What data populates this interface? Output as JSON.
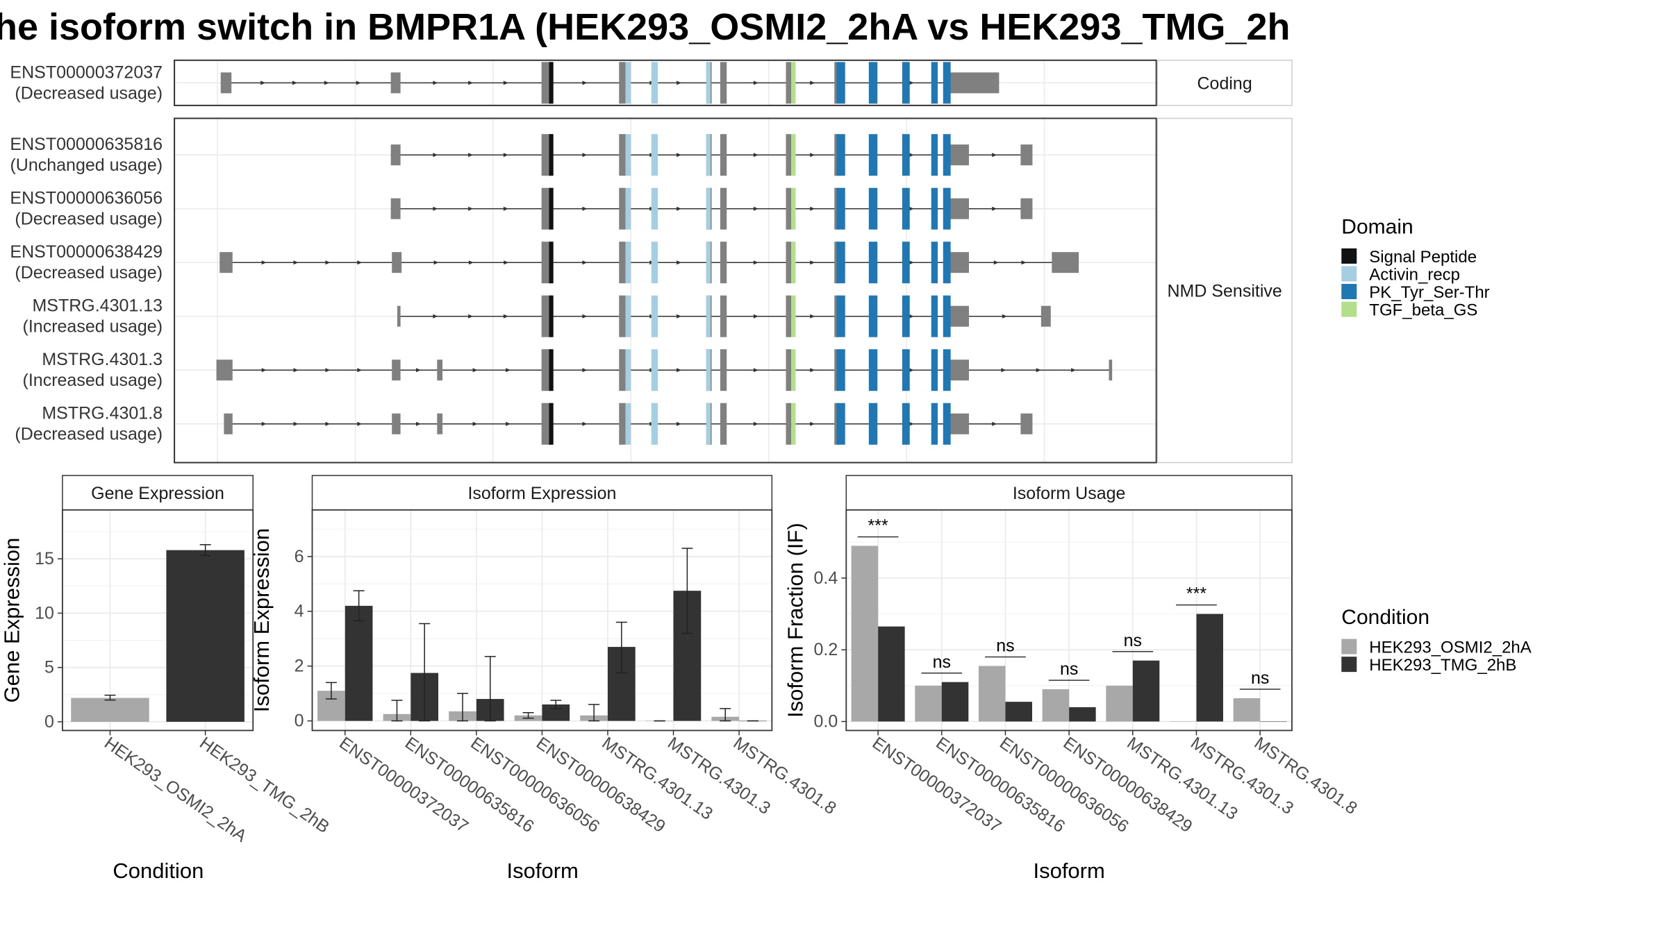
{
  "title": "he isoform switch in BMPR1A (HEK293_OSMI2_2hA vs HEK293_TMG_2h",
  "colors": {
    "exon": "#808080",
    "signal_peptide": "#111111",
    "activin_recp": "#a6cee3",
    "pk_tyr_ser_thr": "#1f78b4",
    "tgf_beta_gs": "#b2df8a",
    "cond_a": "#a8a8a8",
    "cond_b": "#333333",
    "panel_border": "#333333",
    "grid": "#ebebeb"
  },
  "structure": {
    "coding_label": "Coding",
    "nmd_label": "NMD Sensitive",
    "coding_transcripts": [
      {
        "id": "ENST00000372037",
        "usage": "(Decreased usage)",
        "line": [
          205,
          928
        ],
        "exons": [
          [
            205,
            215
          ],
          [
            363,
            372
          ],
          [
            503,
            512
          ],
          [
            575,
            581
          ],
          [
            656,
            661
          ],
          [
            669,
            675
          ],
          [
            730,
            735
          ],
          [
            775,
            779
          ],
          [
            881,
            928
          ]
        ],
        "domains": [
          {
            "d": "signal_peptide",
            "r": [
              510,
              514
            ]
          },
          {
            "d": "activin_recp",
            "r": [
              581,
              586
            ]
          },
          {
            "d": "activin_recp",
            "r": [
              605,
              611
            ]
          },
          {
            "d": "activin_recp",
            "r": [
              656,
              660
            ]
          },
          {
            "d": "tgf_beta_gs",
            "r": [
              735,
              739
            ]
          },
          {
            "d": "pk_tyr_ser_thr",
            "r": [
              777,
              785
            ]
          },
          {
            "d": "pk_tyr_ser_thr",
            "r": [
              807,
              815
            ]
          },
          {
            "d": "pk_tyr_ser_thr",
            "r": [
              838,
              845
            ]
          },
          {
            "d": "pk_tyr_ser_thr",
            "r": [
              865,
              871
            ]
          },
          {
            "d": "pk_tyr_ser_thr",
            "r": [
              876,
              883
            ]
          }
        ]
      }
    ],
    "nmd_transcripts": [
      {
        "id": "ENST00000635816",
        "usage": "(Unchanged usage)",
        "line": [
          363,
          959
        ],
        "exons": [
          [
            363,
            372
          ],
          [
            503,
            512
          ],
          [
            575,
            581
          ],
          [
            656,
            661
          ],
          [
            669,
            675
          ],
          [
            730,
            735
          ],
          [
            775,
            779
          ],
          [
            881,
            900
          ],
          [
            948,
            959
          ]
        ],
        "domains": [
          {
            "d": "signal_peptide",
            "r": [
              510,
              514
            ]
          },
          {
            "d": "activin_recp",
            "r": [
              581,
              586
            ]
          },
          {
            "d": "activin_recp",
            "r": [
              605,
              611
            ]
          },
          {
            "d": "activin_recp",
            "r": [
              656,
              660
            ]
          },
          {
            "d": "tgf_beta_gs",
            "r": [
              735,
              739
            ]
          },
          {
            "d": "pk_tyr_ser_thr",
            "r": [
              777,
              785
            ]
          },
          {
            "d": "pk_tyr_ser_thr",
            "r": [
              807,
              815
            ]
          },
          {
            "d": "pk_tyr_ser_thr",
            "r": [
              838,
              845
            ]
          },
          {
            "d": "pk_tyr_ser_thr",
            "r": [
              865,
              871
            ]
          },
          {
            "d": "pk_tyr_ser_thr",
            "r": [
              876,
              883
            ]
          }
        ]
      },
      {
        "id": "ENST00000636056",
        "usage": "(Decreased usage)",
        "line": [
          363,
          959
        ],
        "exons": [
          [
            363,
            372
          ],
          [
            503,
            512
          ],
          [
            575,
            581
          ],
          [
            656,
            661
          ],
          [
            669,
            675
          ],
          [
            730,
            735
          ],
          [
            775,
            779
          ],
          [
            881,
            900
          ],
          [
            948,
            959
          ]
        ],
        "domains": [
          {
            "d": "signal_peptide",
            "r": [
              510,
              514
            ]
          },
          {
            "d": "activin_recp",
            "r": [
              581,
              586
            ]
          },
          {
            "d": "activin_recp",
            "r": [
              605,
              611
            ]
          },
          {
            "d": "activin_recp",
            "r": [
              656,
              660
            ]
          },
          {
            "d": "tgf_beta_gs",
            "r": [
              735,
              739
            ]
          },
          {
            "d": "pk_tyr_ser_thr",
            "r": [
              777,
              785
            ]
          },
          {
            "d": "pk_tyr_ser_thr",
            "r": [
              807,
              815
            ]
          },
          {
            "d": "pk_tyr_ser_thr",
            "r": [
              838,
              845
            ]
          },
          {
            "d": "pk_tyr_ser_thr",
            "r": [
              865,
              871
            ]
          },
          {
            "d": "pk_tyr_ser_thr",
            "r": [
              876,
              883
            ]
          }
        ]
      },
      {
        "id": "ENST00000638429",
        "usage": "(Decreased usage)",
        "line": [
          204,
          1002
        ],
        "exons": [
          [
            204,
            216
          ],
          [
            364,
            373
          ],
          [
            503,
            512
          ],
          [
            575,
            581
          ],
          [
            656,
            661
          ],
          [
            669,
            675
          ],
          [
            730,
            735
          ],
          [
            775,
            779
          ],
          [
            881,
            900
          ],
          [
            977,
            1002
          ]
        ],
        "domains": [
          {
            "d": "signal_peptide",
            "r": [
              510,
              514
            ]
          },
          {
            "d": "activin_recp",
            "r": [
              581,
              586
            ]
          },
          {
            "d": "activin_recp",
            "r": [
              605,
              611
            ]
          },
          {
            "d": "activin_recp",
            "r": [
              656,
              660
            ]
          },
          {
            "d": "tgf_beta_gs",
            "r": [
              735,
              739
            ]
          },
          {
            "d": "pk_tyr_ser_thr",
            "r": [
              777,
              785
            ]
          },
          {
            "d": "pk_tyr_ser_thr",
            "r": [
              807,
              815
            ]
          },
          {
            "d": "pk_tyr_ser_thr",
            "r": [
              838,
              845
            ]
          },
          {
            "d": "pk_tyr_ser_thr",
            "r": [
              865,
              871
            ]
          },
          {
            "d": "pk_tyr_ser_thr",
            "r": [
              876,
              883
            ]
          }
        ]
      },
      {
        "id": "MSTRG.4301.13",
        "usage": "(Increased usage)",
        "line": [
          369,
          976
        ],
        "exons": [
          [
            369,
            372
          ],
          [
            503,
            512
          ],
          [
            575,
            581
          ],
          [
            656,
            661
          ],
          [
            669,
            675
          ],
          [
            730,
            735
          ],
          [
            775,
            779
          ],
          [
            881,
            900
          ],
          [
            967,
            976
          ]
        ],
        "domains": [
          {
            "d": "signal_peptide",
            "r": [
              510,
              514
            ]
          },
          {
            "d": "activin_recp",
            "r": [
              581,
              586
            ]
          },
          {
            "d": "activin_recp",
            "r": [
              605,
              611
            ]
          },
          {
            "d": "activin_recp",
            "r": [
              656,
              660
            ]
          },
          {
            "d": "tgf_beta_gs",
            "r": [
              735,
              739
            ]
          },
          {
            "d": "pk_tyr_ser_thr",
            "r": [
              777,
              785
            ]
          },
          {
            "d": "pk_tyr_ser_thr",
            "r": [
              807,
              815
            ]
          },
          {
            "d": "pk_tyr_ser_thr",
            "r": [
              838,
              845
            ]
          },
          {
            "d": "pk_tyr_ser_thr",
            "r": [
              865,
              871
            ]
          },
          {
            "d": "pk_tyr_ser_thr",
            "r": [
              876,
              883
            ]
          }
        ]
      },
      {
        "id": "MSTRG.4301.3",
        "usage": "(Increased usage)",
        "line": [
          201,
          1033
        ],
        "exons": [
          [
            201,
            216
          ],
          [
            364,
            372
          ],
          [
            406,
            411
          ],
          [
            503,
            512
          ],
          [
            575,
            581
          ],
          [
            656,
            661
          ],
          [
            669,
            675
          ],
          [
            730,
            735
          ],
          [
            775,
            779
          ],
          [
            881,
            900
          ],
          [
            1030,
            1033
          ]
        ],
        "domains": [
          {
            "d": "signal_peptide",
            "r": [
              510,
              514
            ]
          },
          {
            "d": "activin_recp",
            "r": [
              581,
              586
            ]
          },
          {
            "d": "activin_recp",
            "r": [
              605,
              611
            ]
          },
          {
            "d": "activin_recp",
            "r": [
              656,
              660
            ]
          },
          {
            "d": "tgf_beta_gs",
            "r": [
              735,
              739
            ]
          },
          {
            "d": "pk_tyr_ser_thr",
            "r": [
              777,
              785
            ]
          },
          {
            "d": "pk_tyr_ser_thr",
            "r": [
              807,
              815
            ]
          },
          {
            "d": "pk_tyr_ser_thr",
            "r": [
              838,
              845
            ]
          },
          {
            "d": "pk_tyr_ser_thr",
            "r": [
              865,
              871
            ]
          },
          {
            "d": "pk_tyr_ser_thr",
            "r": [
              876,
              883
            ]
          }
        ]
      },
      {
        "id": "MSTRG.4301.8",
        "usage": "(Decreased usage)",
        "line": [
          208,
          959
        ],
        "exons": [
          [
            208,
            216
          ],
          [
            364,
            372
          ],
          [
            406,
            411
          ],
          [
            503,
            512
          ],
          [
            575,
            581
          ],
          [
            656,
            661
          ],
          [
            669,
            675
          ],
          [
            730,
            735
          ],
          [
            775,
            779
          ],
          [
            881,
            900
          ],
          [
            948,
            959
          ]
        ],
        "domains": [
          {
            "d": "signal_peptide",
            "r": [
              510,
              514
            ]
          },
          {
            "d": "activin_recp",
            "r": [
              581,
              586
            ]
          },
          {
            "d": "activin_recp",
            "r": [
              605,
              611
            ]
          },
          {
            "d": "activin_recp",
            "r": [
              656,
              660
            ]
          },
          {
            "d": "tgf_beta_gs",
            "r": [
              735,
              739
            ]
          },
          {
            "d": "pk_tyr_ser_thr",
            "r": [
              777,
              785
            ]
          },
          {
            "d": "pk_tyr_ser_thr",
            "r": [
              807,
              815
            ]
          },
          {
            "d": "pk_tyr_ser_thr",
            "r": [
              838,
              845
            ]
          },
          {
            "d": "pk_tyr_ser_thr",
            "r": [
              865,
              871
            ]
          },
          {
            "d": "pk_tyr_ser_thr",
            "r": [
              876,
              883
            ]
          }
        ]
      }
    ]
  },
  "legends": {
    "domain": {
      "title": "Domain",
      "items": [
        {
          "label": "Signal Peptide",
          "color": "#111111"
        },
        {
          "label": "Activin_recp",
          "color": "#a6cee3"
        },
        {
          "label": "PK_Tyr_Ser-Thr",
          "color": "#1f78b4"
        },
        {
          "label": "TGF_beta_GS",
          "color": "#b2df8a"
        }
      ]
    },
    "condition": {
      "title": "Condition",
      "items": [
        {
          "label": "HEK293_OSMI2_2hA",
          "color": "#a8a8a8"
        },
        {
          "label": "HEK293_TMG_2hB",
          "color": "#333333"
        }
      ]
    }
  },
  "chart_data": [
    {
      "type": "bar",
      "title": "Gene Expression",
      "xlabel": "Condition",
      "ylabel": "Gene Expression",
      "ylim": [
        -0.8,
        19.5
      ],
      "yticks": [
        0,
        5,
        10,
        15
      ],
      "categories": [
        "HEK293_OSMI2_2hA",
        "HEK293_TMG_2hB"
      ],
      "values": [
        2.2,
        15.8
      ],
      "errors": [
        [
          2.0,
          2.45
        ],
        [
          15.3,
          16.3
        ]
      ],
      "bar_colors": [
        "#a8a8a8",
        "#333333"
      ]
    },
    {
      "type": "bar",
      "title": "Isoform Expression",
      "xlabel": "Isoform",
      "ylabel": "Isoform Expression",
      "ylim": [
        -0.35,
        7.7
      ],
      "yticks": [
        0,
        2,
        4,
        6
      ],
      "categories": [
        "ENST00000372037",
        "ENST00000635816",
        "ENST00000636056",
        "ENST00000638429",
        "MSTRG.4301.13",
        "MSTRG.4301.3",
        "MSTRG.4301.8"
      ],
      "series": [
        {
          "name": "HEK293_OSMI2_2hA",
          "values": [
            1.1,
            0.25,
            0.35,
            0.2,
            0.2,
            0.0,
            0.15
          ],
          "errors": [
            [
              0.8,
              1.4
            ],
            [
              0.0,
              0.75
            ],
            [
              0.0,
              1.0
            ],
            [
              0.1,
              0.3
            ],
            [
              0.0,
              0.6
            ],
            [
              0.0,
              0.0
            ],
            [
              0.0,
              0.45
            ]
          ]
        },
        {
          "name": "HEK293_TMG_2hB",
          "values": [
            4.2,
            1.75,
            0.8,
            0.6,
            2.7,
            4.75,
            0.0
          ],
          "errors": [
            [
              3.65,
              4.75
            ],
            [
              0.0,
              3.55
            ],
            [
              0.0,
              2.35
            ],
            [
              0.45,
              0.75
            ],
            [
              1.75,
              3.6
            ],
            [
              3.2,
              6.3
            ],
            [
              0.0,
              0.0
            ]
          ]
        }
      ]
    },
    {
      "type": "bar",
      "title": "Isoform Usage",
      "xlabel": "Isoform",
      "ylabel": "Isoform Fraction (IF)",
      "ylim": [
        -0.025,
        0.59
      ],
      "yticks": [
        0.0,
        0.2,
        0.4
      ],
      "ytick_labels": [
        "0.0",
        "0.2",
        "0.4"
      ],
      "categories": [
        "ENST00000372037",
        "ENST00000635816",
        "ENST00000636056",
        "ENST00000638429",
        "MSTRG.4301.13",
        "MSTRG.4301.3",
        "MSTRG.4301.8"
      ],
      "series": [
        {
          "name": "HEK293_OSMI2_2hA",
          "values": [
            0.49,
            0.1,
            0.155,
            0.09,
            0.1,
            0.0,
            0.065
          ]
        },
        {
          "name": "HEK293_TMG_2hB",
          "values": [
            0.265,
            0.11,
            0.055,
            0.04,
            0.17,
            0.3,
            0.0
          ]
        }
      ],
      "significance": [
        "***",
        "ns",
        "ns",
        "ns",
        "ns",
        "***",
        "ns"
      ],
      "sig_bar_y": [
        0.515,
        0.135,
        0.18,
        0.115,
        0.195,
        0.325,
        0.09
      ]
    }
  ]
}
